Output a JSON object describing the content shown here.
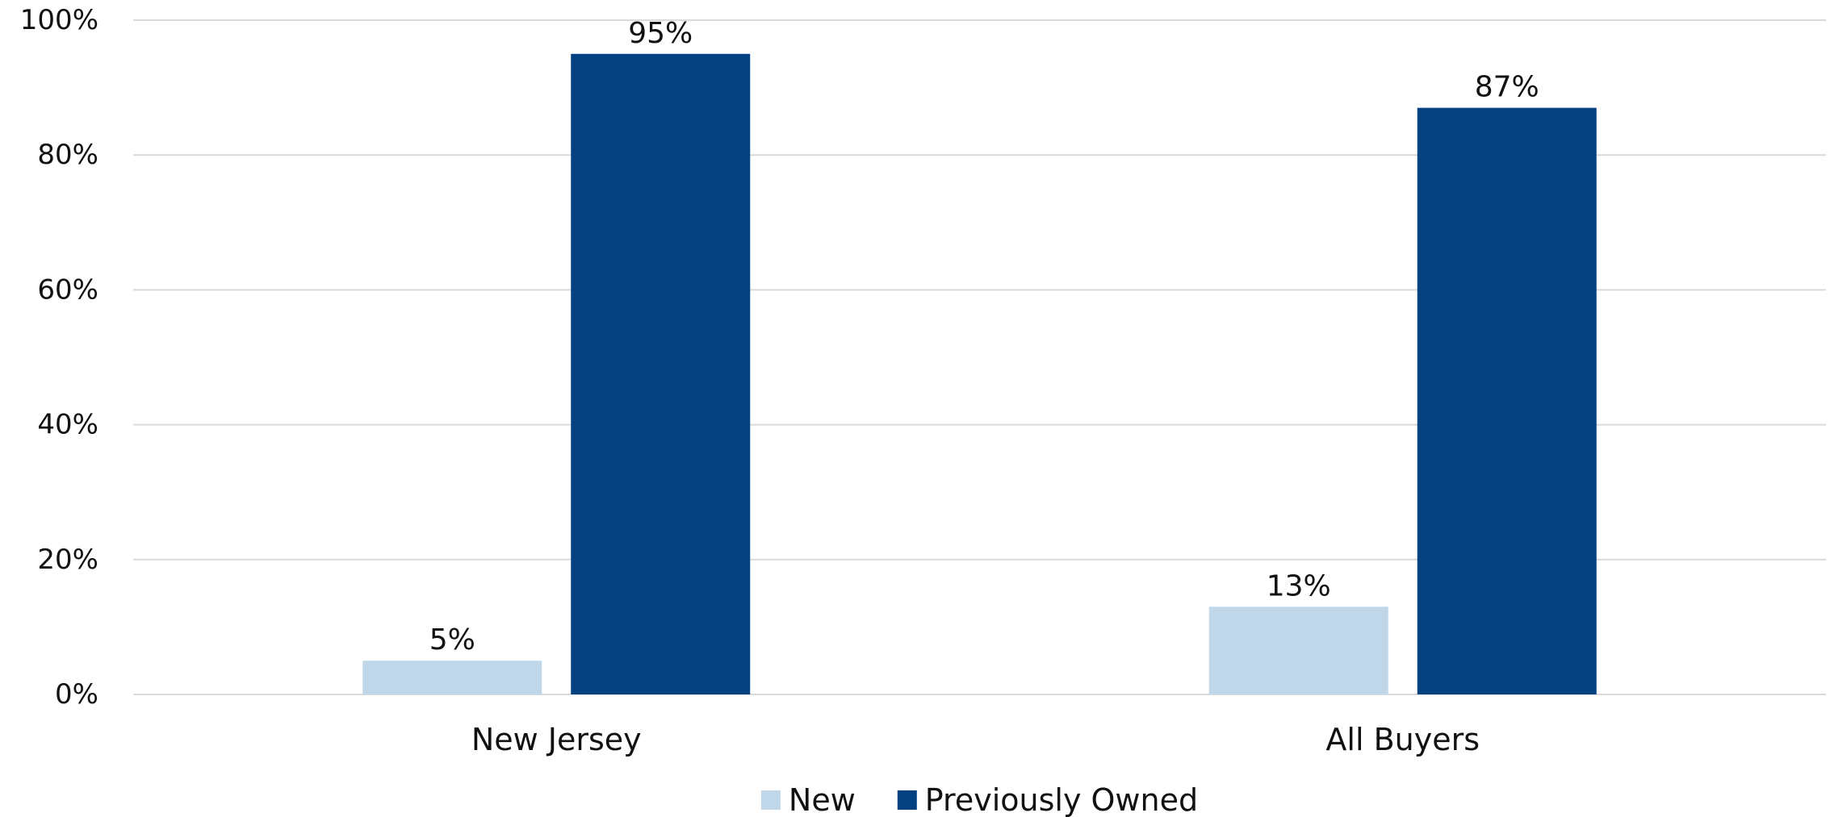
{
  "chart_data": {
    "type": "bar",
    "title": "",
    "xlabel": "",
    "ylabel": "",
    "categories": [
      "New Jersey",
      "All Buyers"
    ],
    "series": [
      {
        "name": "New",
        "values": [
          5,
          13
        ],
        "color": "#bfd7e8"
      },
      {
        "name": "Previously Owned",
        "values": [
          95,
          87
        ],
        "color": "#034181"
      }
    ],
    "ylim": [
      0,
      100
    ],
    "yticks": [
      0,
      20,
      40,
      60,
      80,
      100
    ],
    "ytick_labels": [
      "0%",
      "20%",
      "40%",
      "60%",
      "80%",
      "100%"
    ],
    "value_suffix": "%",
    "data_labels": true,
    "grid": true,
    "legend": "bottom"
  }
}
